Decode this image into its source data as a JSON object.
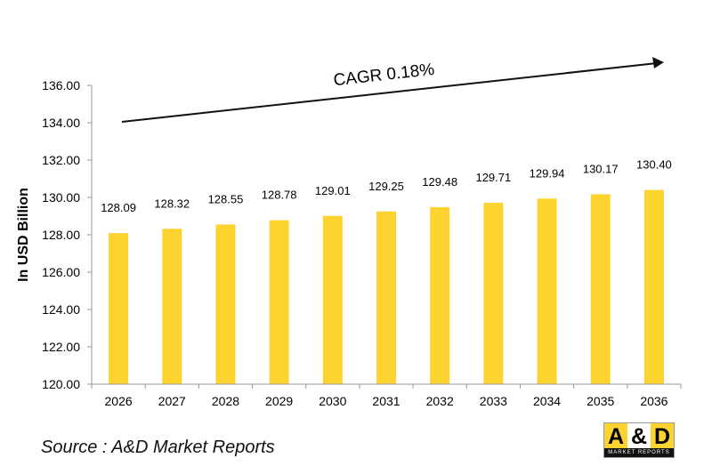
{
  "chart_data": {
    "type": "bar",
    "categories": [
      "2026",
      "2027",
      "2028",
      "2029",
      "2030",
      "2031",
      "2032",
      "2033",
      "2034",
      "2035",
      "2036"
    ],
    "values": [
      128.09,
      128.32,
      128.55,
      128.78,
      129.01,
      129.25,
      129.48,
      129.71,
      129.94,
      130.17,
      130.4
    ],
    "data_labels": [
      "128.09",
      "128.32",
      "128.55",
      "128.78",
      "129.01",
      "129.25",
      "129.48",
      "129.71",
      "129.94",
      "130.17",
      "130.40"
    ],
    "ylabel": "In USD Billion",
    "xlabel": "",
    "ylim": [
      120,
      136
    ],
    "yticks": [
      "120.00",
      "122.00",
      "124.00",
      "126.00",
      "128.00",
      "130.00",
      "132.00",
      "134.00",
      "136.00"
    ],
    "annotation": "CAGR 0.18%",
    "grid": false,
    "bar_color": "#FDD330"
  },
  "source": "Source : A&D Market Reports",
  "logo": {
    "letters": [
      "A",
      "&",
      "D"
    ],
    "subtitle": "MARKET REPORTS",
    "colors": [
      "#FDD330",
      "#ffffff",
      "#FDD330"
    ]
  }
}
